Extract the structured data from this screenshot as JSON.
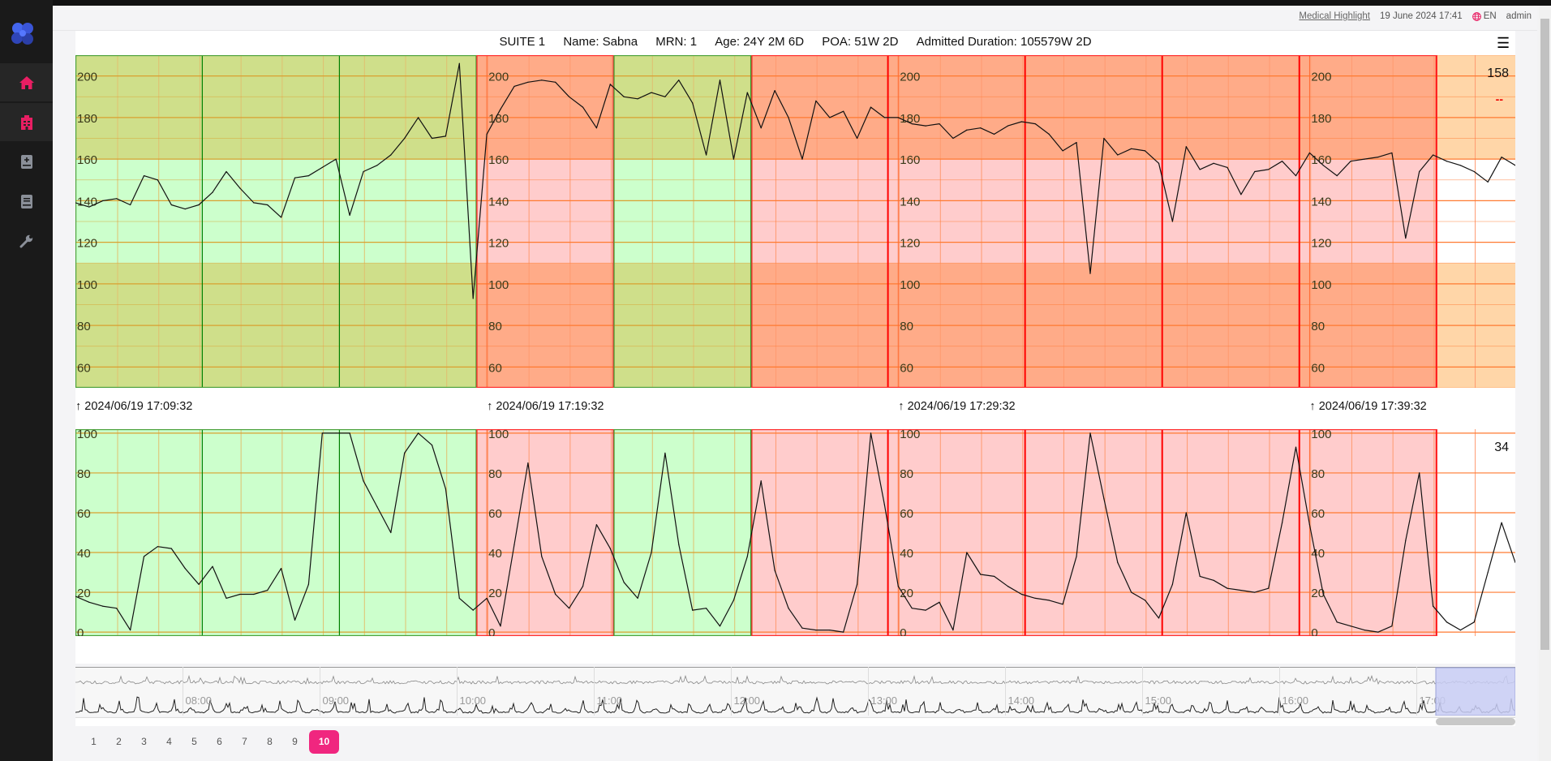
{
  "header": {
    "link": "Medical Highlight",
    "datetime": "19 June 2024 17:41",
    "language": "EN",
    "user": "admin"
  },
  "sidebar": {
    "items": [
      {
        "name": "home",
        "icon": "home-icon",
        "active": true
      },
      {
        "name": "hospital",
        "icon": "hospital-icon",
        "active": true
      },
      {
        "name": "add-record",
        "icon": "book-plus-icon",
        "active": false
      },
      {
        "name": "records",
        "icon": "book-icon",
        "active": false
      },
      {
        "name": "settings",
        "icon": "wrench-icon",
        "active": false
      }
    ],
    "accent": "#e91e63"
  },
  "patient": {
    "suite": "SUITE 1",
    "name": "Name: Sabna",
    "mrn": "MRN: 1",
    "age": "Age: 24Y 2M 6D",
    "poa": "POA: 51W 2D",
    "admitted": "Admitted Duration: 105579W 2D"
  },
  "timeline": {
    "markers": [
      "2024/06/19 17:09:32",
      "2024/06/19 17:19:32",
      "2024/06/19 17:29:32",
      "2024/06/19 17:39:32"
    ],
    "arrow": "↑"
  },
  "live": {
    "fhr": "158",
    "fhr2": "--",
    "uc": "34"
  },
  "chart_data": [
    {
      "type": "line",
      "x_range": [
        "17:09:32",
        "17:44:32"
      ],
      "ylim": [
        50,
        210
      ],
      "yticks": [
        200,
        180,
        160,
        140,
        120,
        100,
        80,
        60
      ],
      "normal_band": [
        110,
        160
      ],
      "grid": true,
      "segments": [
        {
          "from": "17:09:32",
          "to": "17:19:17",
          "status": "normal"
        },
        {
          "from": "17:19:17",
          "to": "17:22:37",
          "status": "alert"
        },
        {
          "from": "17:22:37",
          "to": "17:25:58",
          "status": "normal"
        },
        {
          "from": "17:25:58",
          "to": "17:42:38",
          "status": "alert"
        },
        {
          "from": "17:42:38",
          "to": "17:44:32",
          "status": "live"
        }
      ],
      "colors": {
        "normal_out": "#cfdf8a",
        "normal_in": "#ccffcc",
        "alert_out": "#ffab88",
        "alert_in": "#ffcccc",
        "live_out": "#ffd6a8",
        "live_in": "#ffffff"
      },
      "times": [
        "17:09:32",
        "17:09:52",
        "17:10:12",
        "17:10:32",
        "17:10:52",
        "17:11:12",
        "17:11:32",
        "17:11:52",
        "17:12:12",
        "17:12:32",
        "17:12:52",
        "17:13:12",
        "17:13:32",
        "17:13:52",
        "17:14:12",
        "17:14:32",
        "17:14:52",
        "17:15:12",
        "17:15:32",
        "17:15:52",
        "17:16:12",
        "17:16:32",
        "17:16:52",
        "17:17:12",
        "17:17:32",
        "17:17:52",
        "17:18:12",
        "17:18:32",
        "17:18:52",
        "17:19:12",
        "17:19:32",
        "17:19:52",
        "17:20:12",
        "17:20:32",
        "17:20:52",
        "17:21:12",
        "17:21:32",
        "17:21:52",
        "17:22:12",
        "17:22:32",
        "17:22:52",
        "17:23:12",
        "17:23:32",
        "17:23:52",
        "17:24:12",
        "17:24:32",
        "17:24:52",
        "17:25:12",
        "17:25:32",
        "17:25:52",
        "17:26:12",
        "17:26:32",
        "17:26:52",
        "17:27:12",
        "17:27:32",
        "17:27:52",
        "17:28:12",
        "17:28:32",
        "17:28:52",
        "17:29:12",
        "17:29:32",
        "17:29:52",
        "17:30:12",
        "17:30:32",
        "17:30:52",
        "17:31:12",
        "17:31:32",
        "17:31:52",
        "17:32:12",
        "17:32:32",
        "17:32:52",
        "17:33:12",
        "17:33:32",
        "17:33:52",
        "17:34:12",
        "17:34:32",
        "17:34:52",
        "17:35:12",
        "17:35:32",
        "17:35:52",
        "17:36:12",
        "17:36:32",
        "17:36:52",
        "17:37:12",
        "17:37:32",
        "17:37:52",
        "17:38:12",
        "17:38:32",
        "17:38:52",
        "17:39:12",
        "17:39:32",
        "17:39:52",
        "17:40:12",
        "17:40:32",
        "17:40:52",
        "17:41:12",
        "17:41:32",
        "17:41:52",
        "17:42:12",
        "17:42:32",
        "17:42:52",
        "17:43:12",
        "17:43:32",
        "17:43:52",
        "17:44:12",
        "17:44:32"
      ],
      "values": [
        139,
        137,
        140,
        141,
        138,
        152,
        150,
        138,
        136,
        138,
        144,
        154,
        146,
        139,
        138,
        132,
        151,
        152,
        156,
        160,
        133,
        154,
        157,
        162,
        170,
        180,
        170,
        171,
        206,
        93,
        172,
        184,
        195,
        197,
        198,
        197,
        190,
        185,
        175,
        196,
        190,
        189,
        192,
        190,
        198,
        187,
        162,
        198,
        160,
        192,
        175,
        193,
        180,
        160,
        188,
        180,
        183,
        170,
        185,
        180,
        180,
        177,
        176,
        177,
        170,
        174,
        175,
        172,
        176,
        178,
        177,
        172,
        164,
        168,
        105,
        170,
        162,
        165,
        164,
        158,
        130,
        166,
        155,
        158,
        156,
        143,
        154,
        155,
        159,
        152,
        163,
        157,
        152,
        159,
        160,
        161,
        163,
        122,
        154,
        162,
        159,
        157,
        154,
        149,
        161,
        157
      ]
    },
    {
      "type": "line",
      "x_range": [
        "17:09:32",
        "17:44:32"
      ],
      "ylim": [
        -2,
        102
      ],
      "yticks": [
        100,
        80,
        60,
        40,
        20,
        0
      ],
      "grid": true,
      "colors": {
        "normal": "#ccffcc",
        "alert": "#ffcccc",
        "live": "#ffffff"
      },
      "values": [
        18,
        15,
        13,
        12,
        1,
        38,
        43,
        42,
        32,
        24,
        33,
        17,
        19,
        19,
        21,
        32,
        6,
        24,
        100,
        100,
        100,
        76,
        63,
        50,
        90,
        100,
        94,
        72,
        17,
        11,
        17,
        3,
        44,
        85,
        38,
        19,
        12,
        23,
        54,
        42,
        25,
        17,
        40,
        90,
        44,
        11,
        12,
        3,
        16,
        38,
        76,
        31,
        12,
        2,
        1,
        1,
        0,
        24,
        100,
        64,
        23,
        12,
        11,
        15,
        1,
        40,
        29,
        28,
        23,
        19,
        17,
        16,
        14,
        38,
        100,
        67,
        35,
        20,
        16,
        7,
        24,
        60,
        28,
        26,
        22,
        21,
        20,
        22,
        55,
        93,
        54,
        19,
        5,
        3,
        1,
        0,
        3,
        46,
        80,
        13,
        5,
        1,
        5,
        30,
        55,
        35
      ]
    }
  ],
  "navigator": {
    "labels": [
      "08:00",
      "09:00",
      "10:00",
      "11:00",
      "12:00",
      "13:00",
      "14:00",
      "15:00",
      "16:00",
      "17:00"
    ],
    "selection_color": "#c8ccf5"
  },
  "pagination": {
    "pages": [
      "1",
      "2",
      "3",
      "4",
      "5",
      "6",
      "7",
      "8",
      "9",
      "10"
    ],
    "current": "10",
    "accent": "#f0267f"
  }
}
